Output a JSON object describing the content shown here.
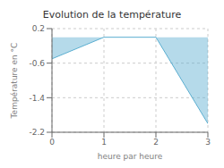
{
  "chart_data": {
    "type": "area",
    "title": "Evolution de la température",
    "xlabel": "heure par heure",
    "ylabel": "Température en °C",
    "x": [
      0,
      1,
      2,
      3
    ],
    "values": [
      -0.5,
      0.0,
      0.0,
      -2.0
    ],
    "baseline": 0.0,
    "color": "#5baed0",
    "xlim": [
      0,
      3
    ],
    "ylim": [
      -2.2,
      0.2
    ],
    "xticks": [
      0,
      1,
      2,
      3
    ],
    "yticks": [
      0.2,
      -0.6,
      -1.4,
      -2.2
    ],
    "grid": true
  }
}
